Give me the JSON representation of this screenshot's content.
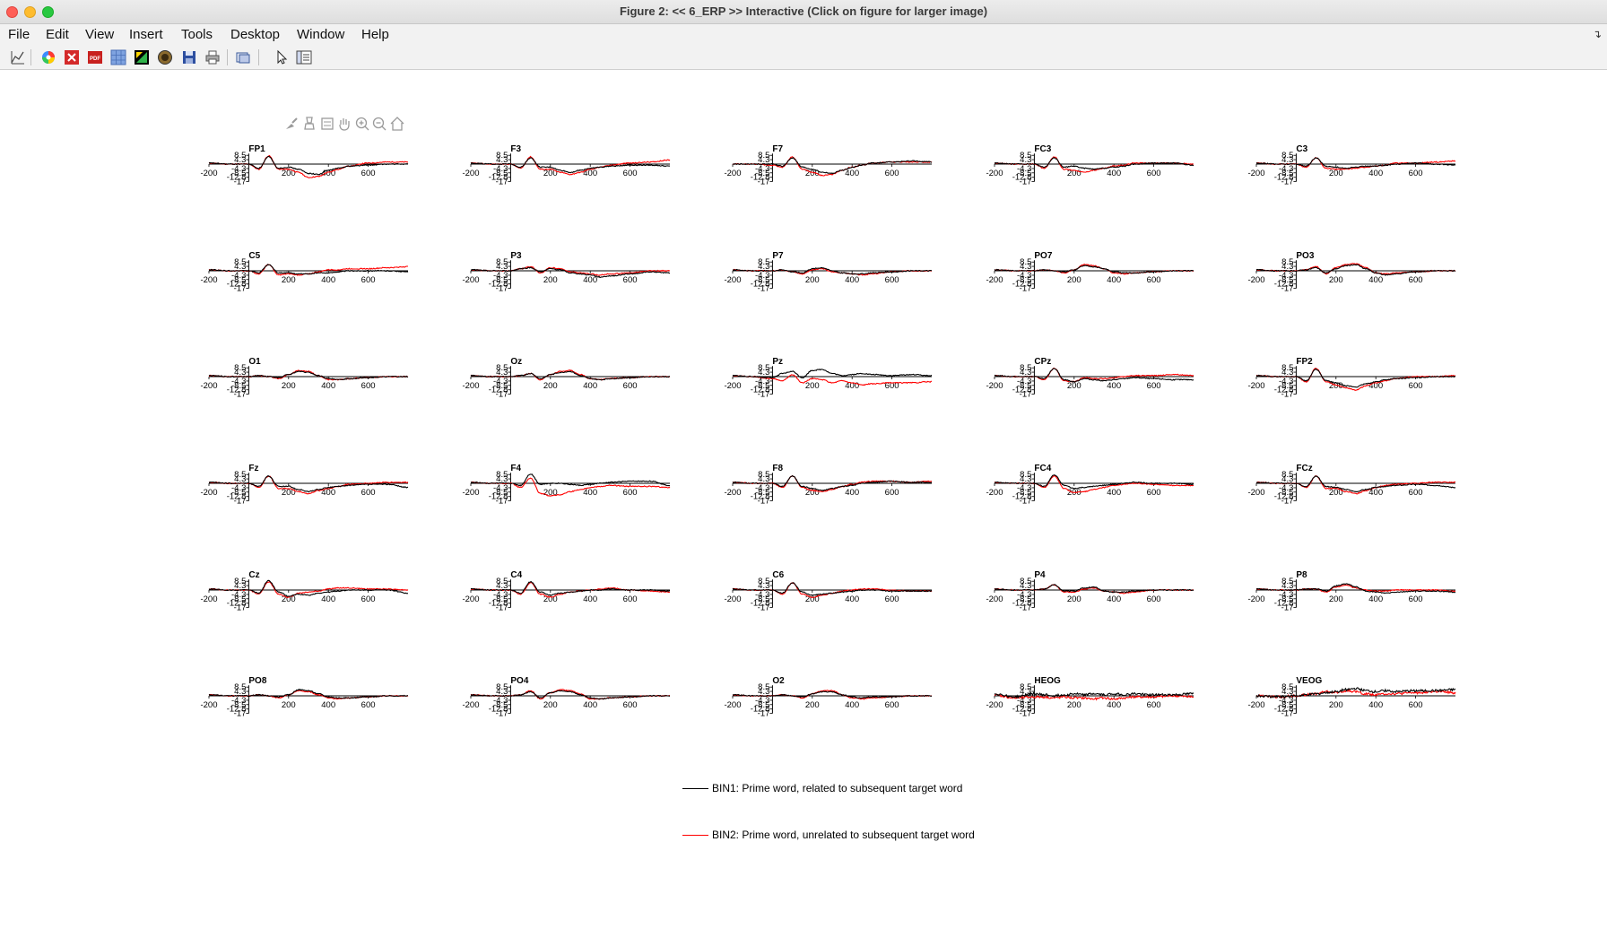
{
  "window": {
    "title": "Figure 2: << 6_ERP >>  Interactive (Click on figure for larger image)"
  },
  "menubar": {
    "items": [
      "File",
      "Edit",
      "View",
      "Insert",
      "Tools",
      "Desktop",
      "Window",
      "Help"
    ]
  },
  "toolbar": {
    "buttons": [
      {
        "name": "line-plot-icon"
      },
      {
        "name": "color-wheel-icon"
      },
      {
        "name": "close-figure-icon"
      },
      {
        "name": "pdf-icon"
      },
      {
        "name": "grid-icon"
      },
      {
        "name": "image-edit-icon"
      },
      {
        "name": "target-icon"
      },
      {
        "name": "save-icon"
      },
      {
        "name": "print-icon"
      },
      {
        "name": "copy-figure-icon"
      },
      {
        "name": "pointer-icon"
      },
      {
        "name": "property-editor-icon"
      }
    ]
  },
  "axes_toolbar": {
    "buttons": [
      "brush-icon",
      "data-tip-icon",
      "legend-icon",
      "pan-icon",
      "zoom-in-icon",
      "zoom-out-icon",
      "home-icon"
    ]
  },
  "colors": {
    "bin1": "#000000",
    "bin2": "#ff0000"
  },
  "chart_data": {
    "type": "line",
    "x_ticks": [
      -200,
      200,
      400,
      600
    ],
    "y_ticks": [
      8.5,
      4.3,
      -4.3,
      -8.5,
      -12.8,
      -17
    ],
    "x_tick_labels": [
      "-200",
      "200",
      "400",
      "600"
    ],
    "y_tick_labels": [
      "8.5",
      "4.3",
      "-4.3",
      "-8.5",
      "-12.8",
      "-17"
    ],
    "xlim": [
      -200,
      800
    ],
    "ylim": [
      -17,
      8.5
    ],
    "channels": [
      "FP1",
      "F3",
      "F7",
      "FC3",
      "C3",
      "C5",
      "P3",
      "P7",
      "PO7",
      "PO3",
      "O1",
      "Oz",
      "Pz",
      "CPz",
      "FP2",
      "Fz",
      "F4",
      "F8",
      "FC4",
      "FCz",
      "Cz",
      "C4",
      "C6",
      "P4",
      "P8",
      "PO8",
      "PO4",
      "O2",
      "HEOG",
      "VEOG"
    ],
    "series": [
      {
        "name": "BIN1: Prime word, related to subsequent target word",
        "color": "#000000"
      },
      {
        "name": "BIN2: Prime word, unrelated to subsequent target word",
        "color": "#ff0000"
      }
    ],
    "waveform_key_points_x": [
      -200,
      -100,
      0,
      50,
      100,
      150,
      200,
      250,
      300,
      350,
      400,
      450,
      500,
      600,
      700,
      800
    ],
    "waveforms": {
      "FP1": {
        "bin1": [
          1,
          0,
          0,
          -4,
          7,
          -4,
          -3,
          -5,
          -9,
          -10,
          -6,
          -4,
          -2,
          -1,
          0,
          0
        ],
        "bin2": [
          1,
          0,
          0,
          -5,
          8,
          -5,
          -5,
          -8,
          -13,
          -12,
          -8,
          -5,
          -2,
          1,
          2,
          2
        ]
      },
      "F3": {
        "bin1": [
          1,
          0,
          0,
          -3,
          6,
          -3,
          -3,
          -6,
          -8,
          -6,
          -4,
          -3,
          -2,
          -1,
          -1,
          -2
        ],
        "bin2": [
          1,
          0,
          0,
          -4,
          7,
          -5,
          -5,
          -8,
          -10,
          -8,
          -5,
          -3,
          -1,
          1,
          2,
          4
        ]
      },
      "F7": {
        "bin1": [
          0,
          0,
          0,
          -2,
          6,
          -3,
          -5,
          -8,
          -9,
          -6,
          -3,
          -1,
          1,
          2,
          3,
          2
        ],
        "bin2": [
          0,
          0,
          -1,
          -3,
          7,
          -5,
          -8,
          -11,
          -10,
          -6,
          -3,
          -1,
          1,
          2,
          2,
          2
        ]
      },
      "FC3": {
        "bin1": [
          1,
          0,
          0,
          -3,
          6,
          -3,
          -2,
          -4,
          -5,
          -4,
          -3,
          -2,
          0,
          1,
          1,
          -1
        ],
        "bin2": [
          1,
          0,
          0,
          -4,
          7,
          -5,
          -6,
          -8,
          -6,
          -4,
          -2,
          -1,
          1,
          1,
          1,
          0
        ]
      },
      "C3": {
        "bin1": [
          1,
          0,
          0,
          -2,
          6,
          -2,
          -3,
          -4,
          -3,
          -2,
          -2,
          -1,
          0,
          1,
          0,
          -1
        ],
        "bin2": [
          1,
          0,
          0,
          -3,
          6,
          -4,
          -5,
          -5,
          -4,
          -3,
          -2,
          -1,
          1,
          1,
          2,
          3
        ]
      },
      "C5": {
        "bin1": [
          1,
          0,
          0,
          -2,
          6,
          -2,
          -2,
          -3,
          -3,
          -2,
          -2,
          -1,
          0,
          0,
          0,
          -1
        ],
        "bin2": [
          1,
          0,
          0,
          -3,
          6,
          -4,
          -3,
          -4,
          -3,
          -1,
          1,
          1,
          2,
          2,
          3,
          4
        ]
      },
      "P3": {
        "bin1": [
          1,
          0,
          0,
          2,
          3,
          -1,
          2,
          1,
          -2,
          -3,
          -4,
          -6,
          -5,
          -3,
          -1,
          -2
        ],
        "bin2": [
          1,
          0,
          0,
          2,
          4,
          -2,
          3,
          2,
          -1,
          -2,
          -3,
          -4,
          -3,
          -2,
          0,
          0
        ]
      },
      "P7": {
        "bin1": [
          1,
          0,
          0,
          1,
          -1,
          -2,
          2,
          3,
          0,
          -2,
          -3,
          -3,
          -2,
          -1,
          0,
          0
        ],
        "bin2": [
          1,
          0,
          0,
          1,
          -1,
          -3,
          1,
          2,
          -1,
          -2,
          -3,
          -4,
          -3,
          -1,
          0,
          0
        ]
      },
      "PO7": {
        "bin1": [
          1,
          0,
          0,
          1,
          0,
          -1,
          1,
          5,
          4,
          2,
          -1,
          -2,
          -2,
          -1,
          0,
          0
        ],
        "bin2": [
          1,
          0,
          0,
          1,
          0,
          -2,
          1,
          6,
          5,
          2,
          -2,
          -3,
          -2,
          -1,
          0,
          0
        ]
      },
      "PO3": {
        "bin1": [
          1,
          0,
          0,
          1,
          3,
          -2,
          2,
          5,
          6,
          2,
          -2,
          -4,
          -3,
          -1,
          0,
          0
        ],
        "bin2": [
          1,
          0,
          0,
          1,
          4,
          -3,
          3,
          6,
          7,
          3,
          -2,
          -3,
          -2,
          -1,
          0,
          0
        ]
      },
      "O1": {
        "bin1": [
          1,
          0,
          0,
          1,
          0,
          -1,
          2,
          5,
          4,
          1,
          -2,
          -3,
          -2,
          -1,
          0,
          0
        ],
        "bin2": [
          1,
          0,
          0,
          1,
          0,
          -2,
          2,
          6,
          5,
          1,
          -3,
          -3,
          -2,
          -1,
          0,
          0
        ]
      },
      "Oz": {
        "bin1": [
          1,
          0,
          0,
          1,
          3,
          -2,
          2,
          4,
          5,
          1,
          -2,
          -3,
          -2,
          -1,
          0,
          0
        ],
        "bin2": [
          1,
          0,
          0,
          1,
          3,
          -3,
          2,
          5,
          6,
          2,
          -2,
          -3,
          -2,
          -1,
          0,
          0
        ]
      },
      "Pz": {
        "bin1": [
          1,
          0,
          -1,
          3,
          5,
          -1,
          6,
          7,
          3,
          1,
          2,
          3,
          2,
          1,
          2,
          1
        ],
        "bin2": [
          1,
          0,
          -2,
          -4,
          2,
          -6,
          -2,
          -3,
          -6,
          -4,
          -6,
          -8,
          -7,
          -6,
          -6,
          -5
        ]
      },
      "CPz": {
        "bin1": [
          1,
          0,
          0,
          -2,
          8,
          -3,
          -5,
          -2,
          -3,
          -4,
          -3,
          -2,
          -1,
          -2,
          -3,
          -3
        ],
        "bin2": [
          1,
          0,
          0,
          -3,
          8,
          -4,
          -5,
          -1,
          -2,
          -2,
          -1,
          0,
          1,
          1,
          2,
          1
        ]
      },
      "FP2": {
        "bin1": [
          1,
          0,
          0,
          -4,
          7,
          -4,
          -6,
          -9,
          -10,
          -7,
          -5,
          -3,
          -2,
          -1,
          0,
          0
        ],
        "bin2": [
          1,
          0,
          0,
          -5,
          8,
          -5,
          -8,
          -11,
          -13,
          -9,
          -6,
          -4,
          -2,
          0,
          0,
          1
        ]
      },
      "Fz": {
        "bin1": [
          1,
          0,
          0,
          -3,
          7,
          -3,
          -3,
          -6,
          -8,
          -6,
          -4,
          -3,
          -2,
          -1,
          -1,
          -4
        ],
        "bin2": [
          1,
          0,
          0,
          -4,
          7,
          -5,
          -5,
          -8,
          -10,
          -7,
          -5,
          -3,
          -1,
          0,
          1,
          1
        ]
      },
      "F4": {
        "bin1": [
          1,
          0,
          0,
          -2,
          9,
          -1,
          0,
          0,
          -1,
          -2,
          -1,
          0,
          1,
          2,
          2,
          -2
        ],
        "bin2": [
          1,
          0,
          0,
          -4,
          5,
          -10,
          -12,
          -11,
          -8,
          -6,
          -4,
          -3,
          -2,
          -3,
          -3,
          -4
        ]
      },
      "F8": {
        "bin1": [
          1,
          0,
          0,
          -3,
          7,
          -3,
          -5,
          -7,
          -5,
          -3,
          -2,
          0,
          1,
          2,
          1,
          1
        ],
        "bin2": [
          1,
          0,
          0,
          -4,
          7,
          -4,
          -7,
          -8,
          -6,
          -3,
          -1,
          1,
          2,
          2,
          1,
          2
        ]
      },
      "FC4": {
        "bin1": [
          1,
          0,
          0,
          -3,
          8,
          -2,
          -5,
          -4,
          -3,
          -2,
          -1,
          0,
          1,
          0,
          0,
          -1
        ],
        "bin2": [
          1,
          0,
          0,
          -4,
          7,
          -5,
          -9,
          -8,
          -6,
          -4,
          -2,
          -1,
          0,
          -1,
          -2,
          -2
        ]
      },
      "FCz": {
        "bin1": [
          1,
          0,
          0,
          -3,
          7,
          -3,
          -4,
          -6,
          -8,
          -6,
          -4,
          -3,
          -2,
          -1,
          -2,
          -4
        ],
        "bin2": [
          1,
          0,
          0,
          -4,
          7,
          -5,
          -5,
          -8,
          -10,
          -7,
          -4,
          -2,
          -1,
          0,
          1,
          1
        ]
      },
      "Cz": {
        "bin1": [
          1,
          0,
          0,
          -3,
          9,
          -2,
          -6,
          -4,
          -5,
          -3,
          -2,
          -1,
          0,
          0,
          0,
          -3
        ],
        "bin2": [
          1,
          0,
          0,
          -4,
          8,
          -4,
          -7,
          -3,
          -2,
          -1,
          1,
          2,
          2,
          1,
          1,
          0
        ]
      },
      "C4": {
        "bin1": [
          1,
          0,
          0,
          -3,
          8,
          -2,
          -5,
          -3,
          -2,
          -1,
          0,
          0,
          1,
          0,
          0,
          -1
        ],
        "bin2": [
          1,
          0,
          0,
          -4,
          7,
          -4,
          -7,
          -4,
          -2,
          -1,
          0,
          1,
          2,
          0,
          -1,
          -2
        ]
      },
      "C6": {
        "bin1": [
          1,
          0,
          0,
          -3,
          7,
          -2,
          -5,
          -4,
          -3,
          -2,
          -1,
          0,
          0,
          -1,
          -1,
          -1
        ],
        "bin2": [
          1,
          0,
          0,
          -4,
          7,
          -4,
          -7,
          -5,
          -3,
          -1,
          0,
          1,
          1,
          0,
          -1,
          -1
        ]
      },
      "P4": {
        "bin1": [
          1,
          0,
          0,
          1,
          5,
          -1,
          -1,
          2,
          3,
          -1,
          -2,
          -2,
          -1,
          0,
          0,
          0
        ],
        "bin2": [
          1,
          0,
          0,
          1,
          5,
          -2,
          -2,
          1,
          2,
          -1,
          -2,
          -3,
          -2,
          0,
          0,
          0
        ]
      },
      "P8": {
        "bin1": [
          1,
          0,
          0,
          1,
          1,
          -1,
          4,
          6,
          3,
          -1,
          -2,
          -3,
          -2,
          -1,
          -1,
          -2
        ],
        "bin2": [
          1,
          0,
          0,
          1,
          1,
          -2,
          3,
          5,
          2,
          0,
          -1,
          -1,
          0,
          0,
          0,
          -1
        ]
      },
      "PO8": {
        "bin1": [
          1,
          0,
          0,
          1,
          0,
          -1,
          1,
          6,
          5,
          2,
          -1,
          -2,
          -2,
          -1,
          0,
          0
        ],
        "bin2": [
          1,
          0,
          0,
          1,
          0,
          -2,
          1,
          5,
          4,
          1,
          -2,
          -3,
          -2,
          -1,
          0,
          0
        ]
      },
      "PO4": {
        "bin1": [
          1,
          0,
          0,
          1,
          4,
          -2,
          3,
          5,
          4,
          1,
          -2,
          -3,
          -2,
          -1,
          0,
          0
        ],
        "bin2": [
          1,
          0,
          0,
          1,
          5,
          -3,
          3,
          6,
          5,
          2,
          -3,
          -3,
          -2,
          -1,
          0,
          0
        ]
      },
      "O2": {
        "bin1": [
          1,
          0,
          0,
          1,
          0,
          -1,
          2,
          4,
          4,
          1,
          -1,
          -2,
          -1,
          -1,
          0,
          0
        ],
        "bin2": [
          1,
          0,
          0,
          1,
          0,
          -2,
          2,
          5,
          5,
          1,
          -2,
          -3,
          -2,
          -1,
          0,
          0
        ]
      },
      "HEOG": {
        "bin1": [
          2,
          -1,
          2,
          1,
          0,
          1,
          2,
          1,
          2,
          1,
          2,
          1,
          2,
          1,
          1,
          2
        ],
        "bin2": [
          1,
          -2,
          -1,
          -1,
          -2,
          -1,
          -2,
          -2,
          -3,
          -2,
          -3,
          -2,
          -1,
          -1,
          0,
          -1
        ]
      },
      "VEOG": {
        "bin1": [
          0,
          -1,
          0,
          1,
          2,
          3,
          4,
          6,
          7,
          5,
          4,
          5,
          4,
          5,
          5,
          6
        ],
        "bin2": [
          0,
          -1,
          0,
          1,
          2,
          4,
          3,
          5,
          4,
          2,
          1,
          2,
          2,
          3,
          4,
          3
        ]
      }
    }
  },
  "legend": {
    "entries": [
      {
        "label": "BIN1: Prime word, related to subsequent target word",
        "color": "#000000"
      },
      {
        "label": "BIN2: Prime word, unrelated to subsequent target word",
        "color": "#ff0000"
      }
    ]
  }
}
